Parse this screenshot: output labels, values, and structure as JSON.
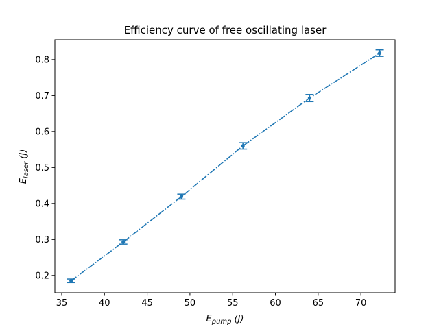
{
  "chart_data": {
    "type": "line",
    "title": "Efficiency curve of free oscillating laser",
    "xlabel": {
      "base": "E",
      "sub": "pump",
      "unit": "(J)"
    },
    "ylabel": {
      "base": "E",
      "sub": "laser",
      "unit": "(J)"
    },
    "xlim": [
      34.2,
      74.0
    ],
    "ylim": [
      0.152,
      0.855
    ],
    "xticks": [
      35,
      40,
      45,
      50,
      55,
      60,
      65,
      70
    ],
    "yticks": [
      0.2,
      0.3,
      0.4,
      0.5,
      0.6,
      0.7,
      0.8
    ],
    "xtick_labels": [
      "35",
      "40",
      "45",
      "50",
      "55",
      "60",
      "65",
      "70"
    ],
    "ytick_labels": [
      "0.2",
      "0.3",
      "0.4",
      "0.5",
      "0.6",
      "0.7",
      "0.8"
    ],
    "grid": false,
    "series": [
      {
        "color": "#1f77b4",
        "line_style": "dash-dot",
        "marker": "dot",
        "error_bars": true,
        "x": [
          36.1,
          42.2,
          49.0,
          56.2,
          64.0,
          72.2
        ],
        "y": [
          0.185,
          0.293,
          0.419,
          0.56,
          0.693,
          0.818
        ],
        "yerr": [
          0.005,
          0.006,
          0.007,
          0.009,
          0.01,
          0.009
        ]
      }
    ]
  }
}
